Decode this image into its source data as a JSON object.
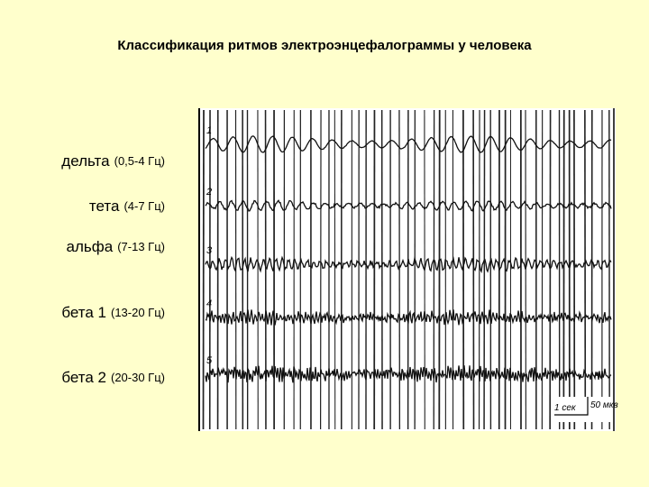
{
  "title": "Классификация ритмов электроэнцефалограммы у человека",
  "rhythms": [
    {
      "name": "дельта",
      "range": "(0,5-4 Гц)"
    },
    {
      "name": "тета",
      "range": "(4-7 Гц)"
    },
    {
      "name": "альфа",
      "range": "(7-13 Гц)"
    },
    {
      "name": "бета 1",
      "range": "(13-20 Гц)"
    },
    {
      "name": "бета 2",
      "range": "(20-30 Гц)"
    }
  ],
  "trace_numbers": [
    "1",
    "2",
    "3",
    "4",
    "5"
  ],
  "scale": {
    "time": "1 сек",
    "amplitude": "50 мкв"
  }
}
